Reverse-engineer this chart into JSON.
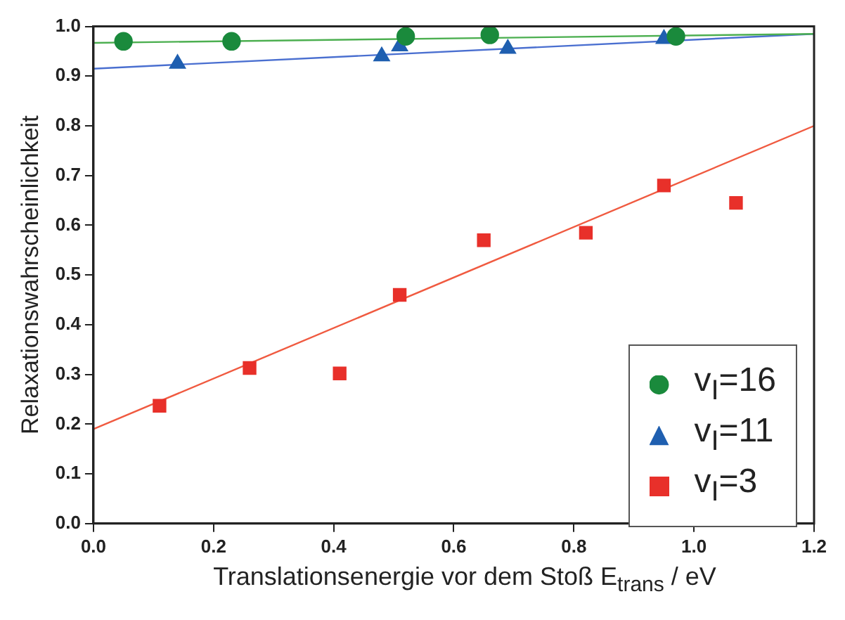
{
  "chart_data": {
    "type": "scatter",
    "xlabel": "Translationsenergie vor dem Stoß E$_{trans}$ / eV",
    "ylabel": "Relaxationswahrscheinlichkeit",
    "xlim": [
      0,
      1.2
    ],
    "xticks": [
      {
        "value": 0,
        "label": "0.0"
      },
      {
        "value": 0.2,
        "label": "0.2"
      },
      {
        "value": 0.4,
        "label": "0.4"
      },
      {
        "value": 0.6,
        "label": "0.6"
      },
      {
        "value": 0.8,
        "label": "0.8"
      },
      {
        "value": 1,
        "label": "1.0"
      },
      {
        "value": 1.2,
        "label": "1.2"
      }
    ],
    "ylim": [
      0,
      1.0
    ],
    "yticks": [
      {
        "value": 0,
        "label": "0.0"
      },
      {
        "value": 0.1,
        "label": "0.1"
      },
      {
        "value": 0.2,
        "label": "0.2"
      },
      {
        "value": 0.3,
        "label": "0.3"
      },
      {
        "value": 0.4,
        "label": "0.4"
      },
      {
        "value": 0.5,
        "label": "0.5"
      },
      {
        "value": 0.6,
        "label": "0.6"
      },
      {
        "value": 0.7,
        "label": "0.7"
      },
      {
        "value": 0.8,
        "label": "0.8"
      },
      {
        "value": 0.9,
        "label": "0.9"
      },
      {
        "value": 1,
        "label": "1.0"
      }
    ],
    "grid": false,
    "legend": "bottom right",
    "series": [
      {
        "name": "v$_{I}$=16",
        "color": "#1a8a3c",
        "marker": "circle",
        "x": [
          0.05,
          0.23,
          0.52,
          0.66,
          0.97
        ],
        "values": [
          0.97,
          0.97,
          0.98,
          0.983,
          0.98
        ]
      },
      {
        "name": "v$_{I}$=11",
        "color": "#1f5fb0",
        "marker": "triangle",
        "x": [
          0.14,
          0.48,
          0.51,
          0.69,
          0.95
        ],
        "values": [
          0.925,
          0.94,
          0.96,
          0.955,
          0.975
        ]
      },
      {
        "name": "v$_{I}$=3",
        "color": "#e8302a",
        "marker": "square",
        "x": [
          0.11,
          0.26,
          0.41,
          0.51,
          0.65,
          0.82,
          0.95,
          1.07
        ],
        "values": [
          0.237,
          0.313,
          0.302,
          0.46,
          0.57,
          0.585,
          0.68,
          0.645
        ]
      },
      {
        "type": "line",
        "color": "#4caf50",
        "marker": "none",
        "x": [
          0,
          1.2
        ],
        "values": [
          0.967,
          0.985
        ]
      },
      {
        "type": "line",
        "color": "#4a6fd0",
        "marker": "none",
        "x": [
          0,
          1.2
        ],
        "values": [
          0.915,
          0.985
        ]
      },
      {
        "type": "line",
        "color": "#f05a40",
        "marker": "none",
        "x": [
          0,
          1.2
        ],
        "values": [
          0.19,
          0.8
        ]
      }
    ]
  }
}
